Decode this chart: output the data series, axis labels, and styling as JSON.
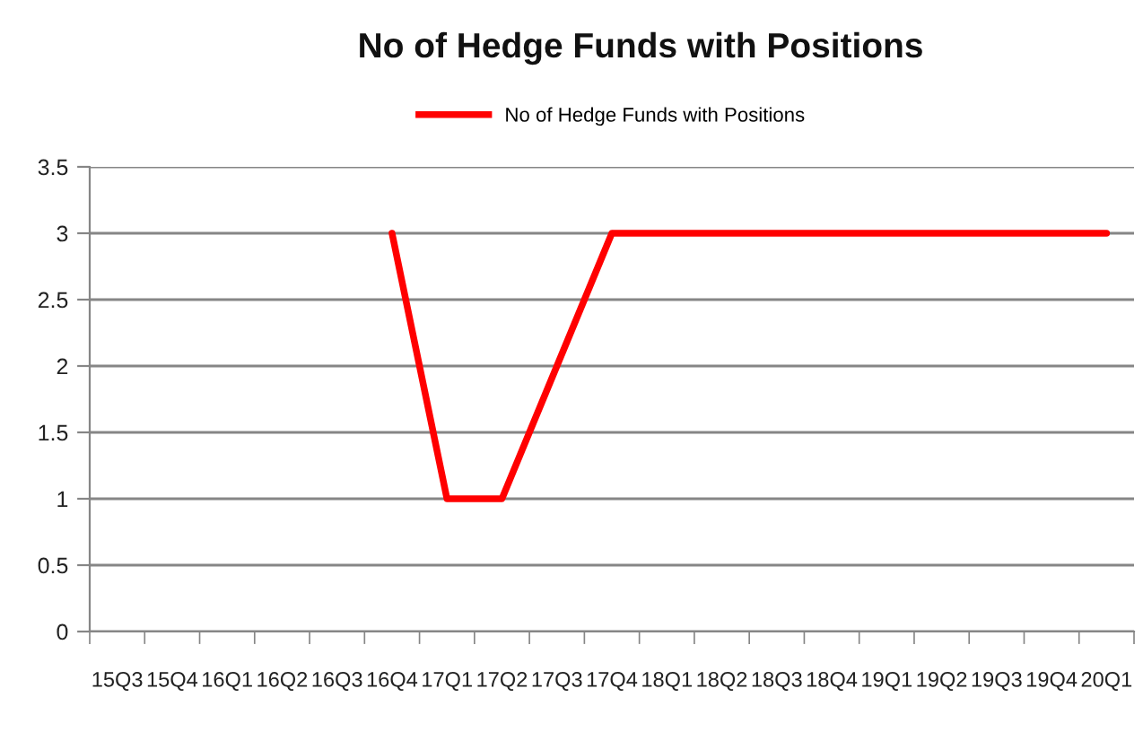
{
  "chart_data": {
    "type": "line",
    "title": "No of Hedge Funds with Positions",
    "categories": [
      "15Q3",
      "15Q4",
      "16Q1",
      "16Q2",
      "16Q3",
      "16Q4",
      "17Q1",
      "17Q2",
      "17Q3",
      "17Q4",
      "18Q1",
      "18Q2",
      "18Q3",
      "18Q4",
      "19Q1",
      "19Q2",
      "19Q3",
      "19Q4",
      "20Q1"
    ],
    "series": [
      {
        "name": "No of Hedge Funds with Positions",
        "color": "#ff0000",
        "values": [
          null,
          null,
          null,
          null,
          null,
          3,
          1,
          1,
          2,
          3,
          3,
          3,
          3,
          3,
          3,
          3,
          3,
          3,
          3
        ]
      }
    ],
    "ylim": [
      0,
      3.5
    ],
    "yticks": [
      0,
      0.5,
      1,
      1.5,
      2,
      2.5,
      3,
      3.5
    ],
    "grid": "y",
    "legend": "top"
  }
}
